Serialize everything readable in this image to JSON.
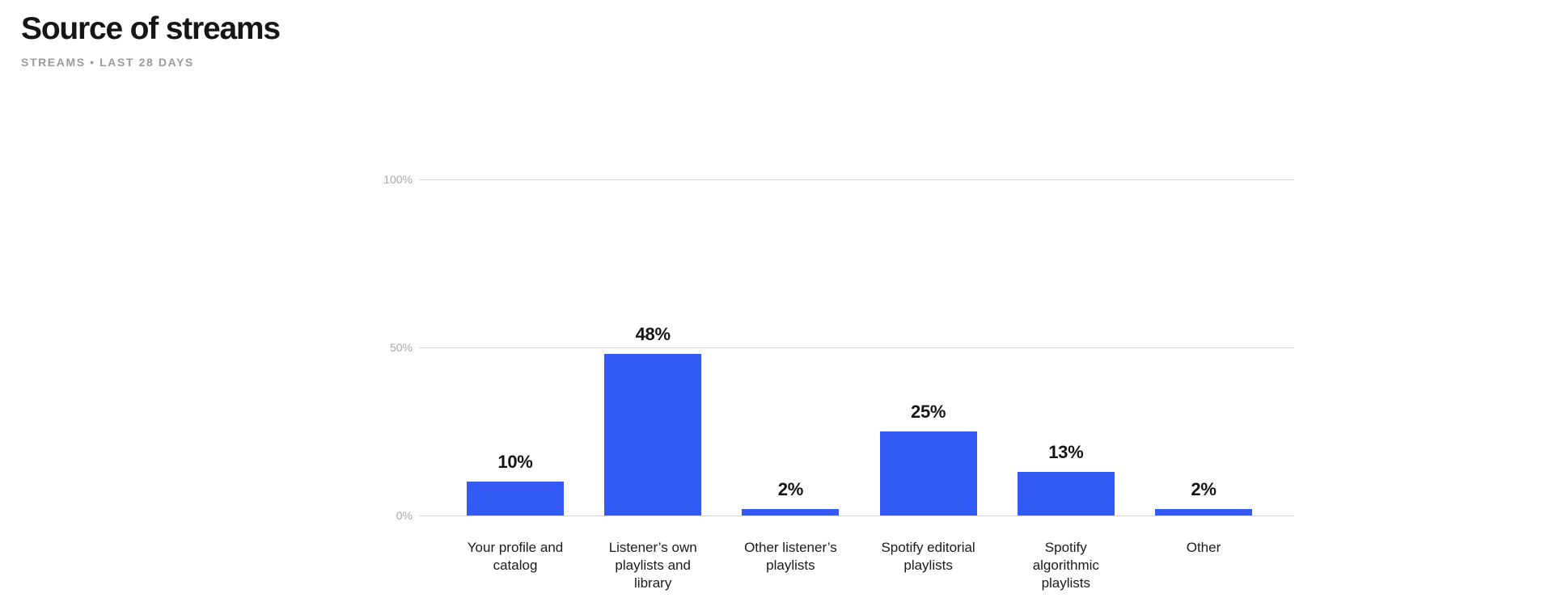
{
  "header": {
    "title": "Source of streams",
    "subtitle": "STREAMS • LAST 28 DAYS"
  },
  "chart_data": {
    "type": "bar",
    "title": "Source of streams",
    "subtitle": "STREAMS • LAST 28 DAYS",
    "categories": [
      "Your profile and catalog",
      "Listener’s own playlists and library",
      "Other listener’s playlists",
      "Spotify editorial playlists",
      "Spotify algorithmic playlists",
      "Other"
    ],
    "category_lines": [
      [
        "Your profile and",
        "catalog"
      ],
      [
        "Listener’s own",
        "playlists and",
        "library"
      ],
      [
        "Other listener’s",
        "playlists"
      ],
      [
        "Spotify editorial",
        "playlists"
      ],
      [
        "Spotify",
        "algorithmic",
        "playlists"
      ],
      [
        "Other"
      ]
    ],
    "values": [
      10,
      48,
      2,
      25,
      13,
      2
    ],
    "value_labels": [
      "10%",
      "48%",
      "2%",
      "25%",
      "13%",
      "2%"
    ],
    "unit": "%",
    "y_ticks": [
      {
        "value": 0,
        "label": "0%"
      },
      {
        "value": 50,
        "label": "50%"
      },
      {
        "value": 100,
        "label": "100%"
      }
    ],
    "ylim": [
      0,
      100
    ],
    "grid": true,
    "legend": "none",
    "bar_color": "#335af5",
    "colors": {
      "title": "#161616",
      "subtitle": "#9b9b9b",
      "axis_label": "#a8a8a8",
      "gridline": "#d6d6d6",
      "value_label": "#141414",
      "category_label": "#1b1b1b"
    }
  }
}
